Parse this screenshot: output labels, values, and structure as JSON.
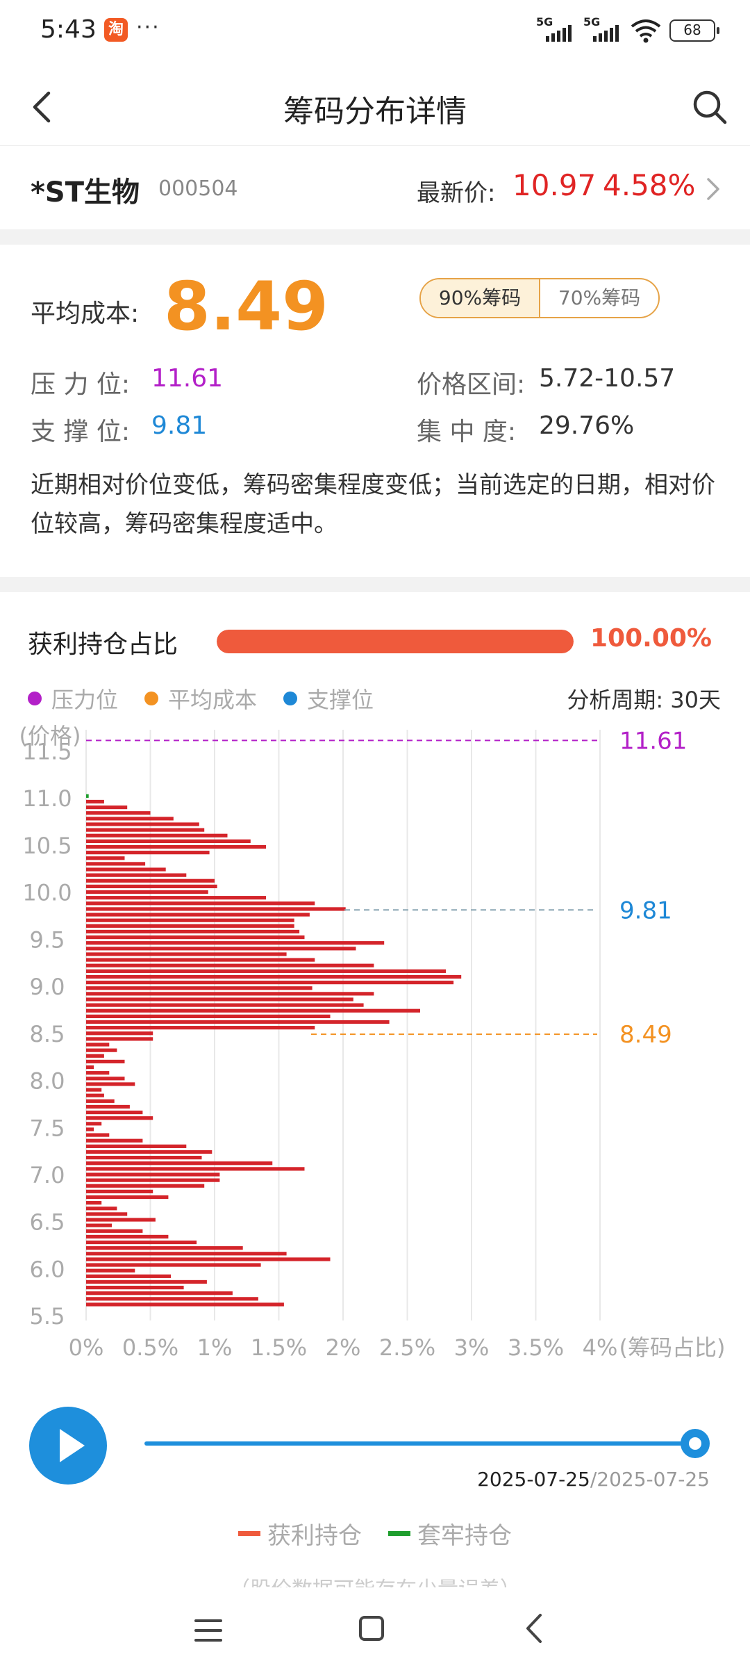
{
  "status_bar": {
    "time": "5:43",
    "app_badge": "淘",
    "dots": "···",
    "signal1": "5G",
    "signal2": "5G",
    "battery": "68"
  },
  "nav": {
    "title": "筹码分布详情"
  },
  "stock": {
    "name": "*ST生物",
    "code": "000504",
    "price_label": "最新价:",
    "price": "10.97",
    "change": "4.58%"
  },
  "summary": {
    "avg_cost_label": "平均成本:",
    "avg_cost": "8.49",
    "toggle": [
      "90%筹码",
      "70%筹码"
    ],
    "toggle_selected": 0,
    "pressure_label": "压 力 位:",
    "pressure": "11.61",
    "support_label": "支 撑 位:",
    "support": "9.81",
    "range_label": "价格区间:",
    "range": "5.72-10.57",
    "concentration_label": "集 中 度:",
    "concentration": "29.76%",
    "description": "近期相对价位变低，筹码密集程度变低；当前选定的日期，相对价位较高，筹码密集程度适中。"
  },
  "profit": {
    "label": "获利持仓占比",
    "percent": "100.00%",
    "fraction": 1.0
  },
  "legend_top": {
    "pressure": "压力位",
    "avg_cost": "平均成本",
    "support": "支撑位",
    "period": "分析周期: 30天"
  },
  "colors": {
    "pressure": "#b320c8",
    "avg_cost": "#f39222",
    "support": "#1e88d6",
    "profit_bar": "#d4242a",
    "trapped_bar": "#1f9e2e",
    "profit_legend": "#ef5a3c"
  },
  "chart_data": {
    "type": "bar",
    "orientation": "horizontal",
    "ylabel": "(价格)",
    "xlabel": "(筹码占比)",
    "x_ticks": [
      "0%",
      "0.5%",
      "1%",
      "1.5%",
      "2%",
      "2.5%",
      "3%",
      "3.5%",
      "4%"
    ],
    "xlim": [
      0,
      4
    ],
    "y_ticks": [
      "5.5",
      "6.0",
      "6.5",
      "7.0",
      "7.5",
      "8.0",
      "8.5",
      "9.0",
      "9.5",
      "10.0",
      "10.5",
      "11.0",
      "11.5"
    ],
    "ylim": [
      5.45,
      11.65
    ],
    "reference_lines": [
      {
        "name": "压力位",
        "value": 11.61,
        "label": "11.61"
      },
      {
        "name": "支撑位",
        "value": 9.81,
        "label": "9.81"
      },
      {
        "name": "平均成本",
        "value": 8.49,
        "label": "8.49"
      }
    ],
    "trapped": [
      {
        "price": 11.02,
        "value": 0.02
      }
    ],
    "series": [
      {
        "name": "获利持仓",
        "points": [
          [
            10.96,
            0.14
          ],
          [
            10.9,
            0.32
          ],
          [
            10.84,
            0.5
          ],
          [
            10.78,
            0.68
          ],
          [
            10.72,
            0.88
          ],
          [
            10.66,
            0.92
          ],
          [
            10.6,
            1.1
          ],
          [
            10.54,
            1.28
          ],
          [
            10.48,
            1.4
          ],
          [
            10.42,
            0.96
          ],
          [
            10.36,
            0.3
          ],
          [
            10.3,
            0.46
          ],
          [
            10.24,
            0.62
          ],
          [
            10.18,
            0.78
          ],
          [
            10.12,
            1.0
          ],
          [
            10.06,
            1.02
          ],
          [
            10.0,
            0.95
          ],
          [
            9.94,
            1.4
          ],
          [
            9.88,
            1.78
          ],
          [
            9.82,
            2.02
          ],
          [
            9.76,
            1.74
          ],
          [
            9.7,
            1.62
          ],
          [
            9.64,
            1.62
          ],
          [
            9.58,
            1.66
          ],
          [
            9.52,
            1.7
          ],
          [
            9.46,
            2.32
          ],
          [
            9.4,
            2.1
          ],
          [
            9.34,
            1.56
          ],
          [
            9.28,
            1.78
          ],
          [
            9.22,
            2.24
          ],
          [
            9.16,
            2.8
          ],
          [
            9.1,
            2.92
          ],
          [
            9.04,
            2.86
          ],
          [
            8.98,
            1.76
          ],
          [
            8.92,
            2.24
          ],
          [
            8.86,
            2.08
          ],
          [
            8.8,
            2.16
          ],
          [
            8.74,
            2.6
          ],
          [
            8.68,
            1.9
          ],
          [
            8.62,
            2.36
          ],
          [
            8.56,
            1.78
          ],
          [
            8.5,
            0.52
          ],
          [
            8.44,
            0.52
          ],
          [
            8.38,
            0.18
          ],
          [
            8.32,
            0.24
          ],
          [
            8.26,
            0.14
          ],
          [
            8.2,
            0.3
          ],
          [
            8.14,
            0.06
          ],
          [
            8.08,
            0.18
          ],
          [
            8.02,
            0.3
          ],
          [
            7.96,
            0.38
          ],
          [
            7.9,
            0.12
          ],
          [
            7.84,
            0.14
          ],
          [
            7.78,
            0.22
          ],
          [
            7.72,
            0.34
          ],
          [
            7.66,
            0.44
          ],
          [
            7.6,
            0.52
          ],
          [
            7.54,
            0.12
          ],
          [
            7.48,
            0.06
          ],
          [
            7.42,
            0.18
          ],
          [
            7.36,
            0.44
          ],
          [
            7.3,
            0.78
          ],
          [
            7.24,
            0.98
          ],
          [
            7.18,
            0.9
          ],
          [
            7.12,
            1.45
          ],
          [
            7.06,
            1.7
          ],
          [
            7.0,
            1.04
          ],
          [
            6.94,
            1.04
          ],
          [
            6.88,
            0.92
          ],
          [
            6.82,
            0.52
          ],
          [
            6.76,
            0.64
          ],
          [
            6.7,
            0.12
          ],
          [
            6.64,
            0.24
          ],
          [
            6.58,
            0.32
          ],
          [
            6.52,
            0.54
          ],
          [
            6.46,
            0.2
          ],
          [
            6.4,
            0.44
          ],
          [
            6.34,
            0.64
          ],
          [
            6.28,
            0.86
          ],
          [
            6.22,
            1.22
          ],
          [
            6.16,
            1.56
          ],
          [
            6.1,
            1.9
          ],
          [
            6.04,
            1.36
          ],
          [
            5.98,
            0.38
          ],
          [
            5.92,
            0.66
          ],
          [
            5.86,
            0.94
          ],
          [
            5.8,
            0.76
          ],
          [
            5.74,
            1.14
          ],
          [
            5.68,
            1.34
          ],
          [
            5.62,
            1.54
          ]
        ]
      }
    ]
  },
  "playback": {
    "date_current": "2025-07-25",
    "separator": "/",
    "date_end": "2025-07-25",
    "progress": 1.0
  },
  "legend_bottom": {
    "profit": "获利持仓",
    "trapped": "套牢持仓"
  },
  "footnote": "（股价数据可能存在少量误差）"
}
